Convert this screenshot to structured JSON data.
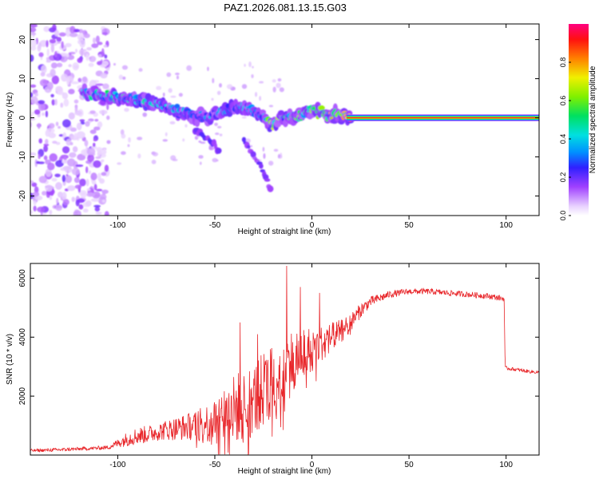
{
  "title": "PAZ1.2026.081.13.15.G03",
  "colors": {
    "snr_line": "#e8262a",
    "axis": "#000000",
    "background": "#ffffff"
  },
  "chart_data": [
    {
      "type": "heatmap",
      "name": "spectrogram",
      "xlabel": "Height of straight line (km)",
      "ylabel": "Frequency (Hz)",
      "xlim": [
        -145,
        117
      ],
      "ylim": [
        -25,
        24
      ],
      "xticks": [
        -100,
        -50,
        0,
        50,
        100
      ],
      "xtick_labels": [
        "-100",
        "-50",
        "0",
        "50",
        "100"
      ],
      "yticks": [
        -20,
        -10,
        0,
        10,
        20
      ],
      "ytick_labels": [
        "-20",
        "-10",
        "0",
        "10",
        "20"
      ],
      "colorbar": {
        "label": "Normalized spectral amplitude",
        "range": [
          0,
          1
        ],
        "ticks": [
          0.0,
          0.2,
          0.4,
          0.6,
          0.8
        ],
        "tick_labels": [
          "0.0",
          "0.2",
          "0.4",
          "0.6",
          "0.8"
        ]
      },
      "main_ridge": {
        "x": [
          -115,
          -105,
          -95,
          -85,
          -75,
          -65,
          -55,
          -45,
          -35,
          -25,
          -20,
          -15,
          -10,
          -5,
          0,
          5,
          10,
          15,
          20,
          30,
          40,
          60,
          80,
          100,
          115
        ],
        "freq": [
          6,
          5.5,
          5,
          4,
          3,
          1,
          0,
          2,
          3,
          0,
          -2,
          0,
          0,
          1,
          2,
          1,
          1,
          0.5,
          0,
          0,
          0,
          0,
          0,
          0,
          0
        ],
        "amplitude": [
          0.45,
          0.5,
          0.45,
          0.45,
          0.4,
          0.35,
          0.35,
          0.35,
          0.35,
          0.35,
          0.8,
          0.5,
          0.55,
          0.6,
          0.6,
          0.65,
          0.75,
          0.8,
          0.95,
          1.0,
          1.0,
          1.0,
          1.0,
          1.0,
          1.0
        ]
      },
      "secondary_branches": [
        {
          "x": [
            -60,
            -55,
            -50,
            -48
          ],
          "freq": [
            -3,
            -5,
            -7,
            -9
          ]
        },
        {
          "x": [
            -35,
            -31,
            -27,
            -23,
            -21
          ],
          "freq": [
            -6,
            -9,
            -12,
            -16,
            -19
          ]
        }
      ],
      "noise_region_x": [
        -145,
        -105
      ]
    },
    {
      "type": "line",
      "name": "snr",
      "xlabel": "Height of straight line (km)",
      "ylabel": "SNR (10 * v/v)",
      "xlim": [
        -145,
        117
      ],
      "ylim": [
        0,
        6500
      ],
      "xticks": [
        -100,
        -50,
        0,
        50,
        100
      ],
      "xtick_labels": [
        "-100",
        "-50",
        "0",
        "50",
        "100"
      ],
      "yticks": [
        2000,
        4000,
        6000
      ],
      "ytick_labels": [
        "2000",
        "4000",
        "6000"
      ],
      "series": [
        {
          "name": "SNR",
          "x": [
            -145,
            -130,
            -115,
            -105,
            -100,
            -95,
            -90,
            -85,
            -80,
            -75,
            -70,
            -65,
            -60,
            -55,
            -50,
            -45,
            -40,
            -35,
            -30,
            -25,
            -20,
            -15,
            -10,
            -5,
            0,
            5,
            10,
            15,
            20,
            25,
            30,
            40,
            50,
            60,
            70,
            80,
            90,
            95,
            99,
            99.5,
            100,
            105,
            110,
            117
          ],
          "y": [
            150,
            180,
            220,
            260,
            400,
            550,
            650,
            700,
            780,
            850,
            900,
            950,
            1000,
            1050,
            1200,
            1400,
            1550,
            1750,
            1900,
            2200,
            2500,
            2900,
            3200,
            3450,
            3600,
            3800,
            4000,
            4200,
            4500,
            4900,
            5200,
            5450,
            5550,
            5550,
            5500,
            5450,
            5400,
            5350,
            5300,
            2950,
            2950,
            2900,
            2850,
            2800
          ],
          "noise_amplitude": [
            50,
            60,
            60,
            70,
            150,
            250,
            300,
            300,
            300,
            350,
            400,
            450,
            500,
            650,
            750,
            1050,
            1200,
            1250,
            1200,
            1300,
            1350,
            1250,
            1100,
            950,
            750,
            600,
            500,
            400,
            300,
            250,
            180,
            120,
            100,
            100,
            100,
            100,
            100,
            100,
            90,
            70,
            60,
            60,
            60,
            60
          ]
        }
      ],
      "spikes": [
        {
          "x": -37,
          "y": 4500
        },
        {
          "x": -28,
          "y": 4100
        },
        {
          "x": -13,
          "y": 6420
        },
        {
          "x": -6,
          "y": 5700
        },
        {
          "x": 4,
          "y": 5500
        }
      ]
    }
  ]
}
